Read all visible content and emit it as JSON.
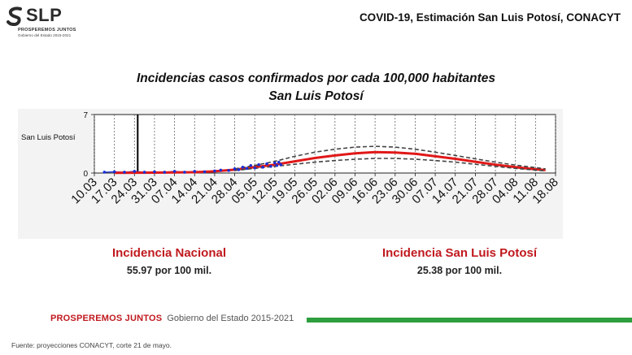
{
  "header": {
    "logo_word": "SLP",
    "logo_tagline": "PROSPEREMOS JUNTOS",
    "logo_subtitle": "Gobierno del Estado 2015-2021",
    "title": "COVID-19, Estimación San Luis Potosí, CONACYT"
  },
  "chart_title_line1": "Incidencias casos confirmados por cada 100,000 habitantes",
  "chart_title_line2": "San Luis Potosí",
  "chart_data": {
    "type": "line",
    "ylabel": "San Luis Potosí",
    "ylim": [
      0,
      7
    ],
    "yticks": [
      "7",
      "0"
    ],
    "categories": [
      "10.03",
      "17.03",
      "24.03",
      "31.03",
      "07.04",
      "14.04",
      "21.04",
      "28.04",
      "05.05",
      "12.05",
      "19.05",
      "26.05",
      "02.06",
      "09.06",
      "16.06",
      "23.06",
      "30.06",
      "07.07",
      "14.07",
      "21.07",
      "28.07",
      "04.08",
      "11.08",
      "18.08"
    ],
    "current_date_marker": "24.03",
    "series": [
      {
        "role": "observed",
        "color": "#1a2fd6",
        "points": [
          [
            0.5,
            0.1
          ],
          [
            1.0,
            0.15
          ],
          [
            1.5,
            0.1
          ],
          [
            2.0,
            0.2
          ],
          [
            2.5,
            0.1
          ],
          [
            3.0,
            0.15
          ],
          [
            3.5,
            0.1
          ],
          [
            4.0,
            0.2
          ],
          [
            4.5,
            0.1
          ],
          [
            5.0,
            0.2
          ],
          [
            5.5,
            0.15
          ],
          [
            6.0,
            0.25
          ],
          [
            6.3,
            0.35
          ],
          [
            6.7,
            0.3
          ],
          [
            7.0,
            0.5
          ],
          [
            7.2,
            0.4
          ],
          [
            7.4,
            0.7
          ],
          [
            7.6,
            0.55
          ],
          [
            7.8,
            0.9
          ],
          [
            8.0,
            0.6
          ],
          [
            8.2,
            1.0
          ],
          [
            8.4,
            0.7
          ],
          [
            8.6,
            1.1
          ],
          [
            8.8,
            0.8
          ],
          [
            9.0,
            1.2
          ],
          [
            9.1,
            0.9
          ],
          [
            9.2,
            1.3
          ],
          [
            9.3,
            1.0
          ]
        ]
      },
      {
        "role": "estimate",
        "color": "#e01818",
        "points": [
          [
            1,
            0.02
          ],
          [
            3,
            0.05
          ],
          [
            5,
            0.1
          ],
          [
            6,
            0.2
          ],
          [
            7,
            0.4
          ],
          [
            8,
            0.7
          ],
          [
            9,
            1.0
          ],
          [
            10,
            1.4
          ],
          [
            11,
            1.8
          ],
          [
            12,
            2.1
          ],
          [
            13,
            2.35
          ],
          [
            14,
            2.5
          ],
          [
            15,
            2.45
          ],
          [
            16,
            2.3
          ],
          [
            17,
            2.0
          ],
          [
            18,
            1.7
          ],
          [
            19,
            1.35
          ],
          [
            20,
            1.0
          ],
          [
            21,
            0.7
          ],
          [
            22,
            0.45
          ],
          [
            22.5,
            0.35
          ]
        ]
      },
      {
        "role": "upper-bound",
        "color": "#444444",
        "points": [
          [
            7,
            0.5
          ],
          [
            8,
            0.9
          ],
          [
            9,
            1.4
          ],
          [
            10,
            2.0
          ],
          [
            11,
            2.5
          ],
          [
            12,
            2.85
          ],
          [
            13,
            3.1
          ],
          [
            14,
            3.2
          ],
          [
            15,
            3.1
          ],
          [
            16,
            2.85
          ],
          [
            17,
            2.5
          ],
          [
            18,
            2.1
          ],
          [
            19,
            1.7
          ],
          [
            20,
            1.3
          ],
          [
            21,
            0.95
          ],
          [
            22,
            0.65
          ],
          [
            22.5,
            0.5
          ]
        ]
      },
      {
        "role": "lower-bound",
        "color": "#444444",
        "points": [
          [
            7,
            0.3
          ],
          [
            8,
            0.55
          ],
          [
            9,
            0.8
          ],
          [
            10,
            1.05
          ],
          [
            11,
            1.3
          ],
          [
            12,
            1.5
          ],
          [
            13,
            1.65
          ],
          [
            14,
            1.75
          ],
          [
            15,
            1.75
          ],
          [
            16,
            1.65
          ],
          [
            17,
            1.5
          ],
          [
            18,
            1.3
          ],
          [
            19,
            1.05
          ],
          [
            20,
            0.8
          ],
          [
            21,
            0.55
          ],
          [
            22,
            0.35
          ],
          [
            22.5,
            0.25
          ]
        ]
      }
    ]
  },
  "stats": {
    "national_label": "Incidencia Nacional",
    "national_value": "55.97 por 100 mil.",
    "slp_label": "Incidencia San Luis Potosí",
    "slp_value": "25.38 por 100 mil."
  },
  "footer": {
    "tagline": "PROSPEREMOS JUNTOS",
    "government": "Gobierno del Estado 2015-2021",
    "accent_color": "#2e9e3e",
    "source": "Fuente: proyecciones CONACYT, corte 21 de mayo."
  }
}
